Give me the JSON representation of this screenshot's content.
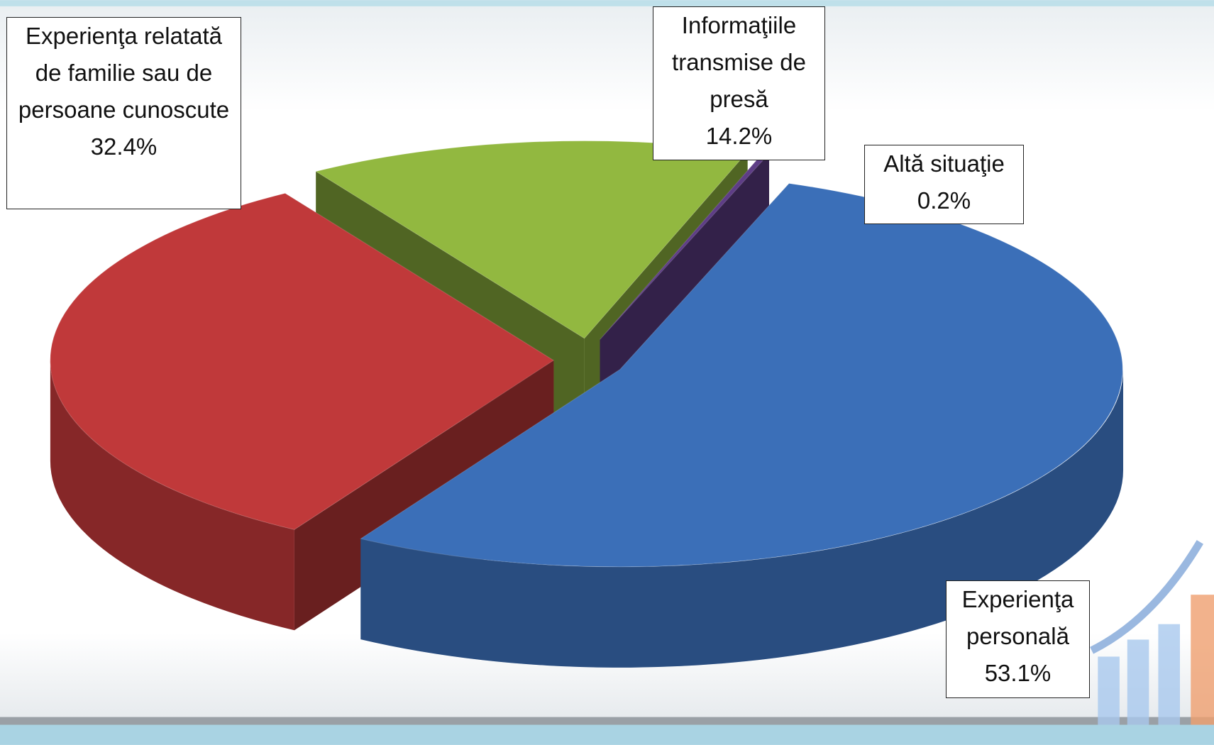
{
  "chart_data": {
    "type": "pie",
    "categories": [
      "Experienţa relatată de familie sau de persoane cunoscute",
      "Informaţiile transmise de presă",
      "Altă situaţie",
      "Experienţa personală"
    ],
    "values": [
      32.4,
      14.2,
      0.2,
      53.1
    ],
    "value_labels": [
      "32.4%",
      "14.2%",
      "0.2%",
      "53.1%"
    ],
    "colors": [
      "#c0393a",
      "#92b840",
      "#5e3d86",
      "#3b6fb8"
    ]
  }
}
